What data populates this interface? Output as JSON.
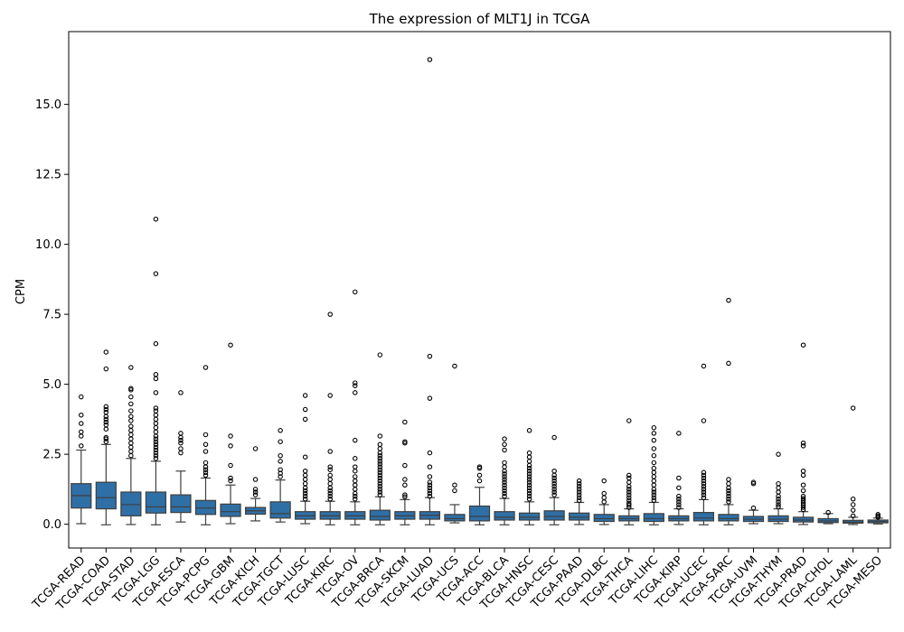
{
  "chart_data": {
    "type": "boxplot",
    "title": "The expression of MLT1J in TCGA",
    "xlabel": "",
    "ylabel": "CPM",
    "ylim": [
      -0.85,
      17.6
    ],
    "yticks": [
      0.0,
      2.5,
      5.0,
      7.5,
      10.0,
      12.5,
      15.0
    ],
    "ytick_labels": [
      "0.0",
      "2.5",
      "5.0",
      "7.5",
      "10.0",
      "12.5",
      "15.0"
    ],
    "grid": false,
    "box_color": "#2e6fa6",
    "categories": [
      "TCGA-READ",
      "TCGA-COAD",
      "TCGA-STAD",
      "TCGA-LGG",
      "TCGA-ESCA",
      "TCGA-PCPG",
      "TCGA-GBM",
      "TCGA-KICH",
      "TCGA-TGCT",
      "TCGA-LUSC",
      "TCGA-KIRC",
      "TCGA-OV",
      "TCGA-BRCA",
      "TCGA-SKCM",
      "TCGA-LUAD",
      "TCGA-UCS",
      "TCGA-ACC",
      "TCGA-BLCA",
      "TCGA-HNSC",
      "TCGA-CESC",
      "TCGA-PAAD",
      "TCGA-DLBC",
      "TCGA-THCA",
      "TCGA-LIHC",
      "TCGA-KIRP",
      "TCGA-UCEC",
      "TCGA-SARC",
      "TCGA-UVM",
      "TCGA-THYM",
      "TCGA-PRAD",
      "TCGA-CHOL",
      "TCGA-LAML",
      "TCGA-MESO"
    ],
    "boxes": [
      {
        "whislo": 0.02,
        "q1": 0.58,
        "med": 1.02,
        "q3": 1.45,
        "whishi": 2.65,
        "fliers": [
          2.8,
          3.15,
          3.3,
          3.6,
          3.9,
          4.55
        ]
      },
      {
        "whislo": -0.02,
        "q1": 0.55,
        "med": 0.95,
        "q3": 1.5,
        "whishi": 2.85,
        "fliers": [
          2.95,
          3.05,
          3.1,
          3.4,
          3.55,
          3.65,
          3.75,
          3.85,
          4.0,
          4.1,
          4.2,
          5.55,
          6.15
        ]
      },
      {
        "whislo": -0.01,
        "q1": 0.3,
        "med": 0.7,
        "q3": 1.15,
        "whishi": 2.35,
        "fliers": [
          2.45,
          2.6,
          2.75,
          2.9,
          3.05,
          3.2,
          3.35,
          3.5,
          3.7,
          3.85,
          4.05,
          4.3,
          4.55,
          4.8,
          4.85,
          5.6
        ]
      },
      {
        "whislo": -0.02,
        "q1": 0.4,
        "med": 0.62,
        "q3": 1.15,
        "whishi": 2.25,
        "fliers": [
          2.35,
          2.45,
          2.55,
          2.65,
          2.75,
          2.85,
          2.95,
          3.05,
          3.15,
          3.3,
          3.45,
          3.6,
          3.75,
          3.9,
          4.05,
          4.15,
          4.7,
          5.2,
          5.35,
          6.45,
          8.95,
          10.9
        ]
      },
      {
        "whislo": 0.08,
        "q1": 0.42,
        "med": 0.62,
        "q3": 1.05,
        "whishi": 1.9,
        "fliers": [
          2.55,
          2.7,
          2.9,
          3.0,
          3.1,
          3.25,
          4.7
        ]
      },
      {
        "whislo": -0.02,
        "q1": 0.35,
        "med": 0.58,
        "q3": 0.85,
        "whishi": 1.65,
        "fliers": [
          1.75,
          1.85,
          1.95,
          2.05,
          2.2,
          2.6,
          2.85,
          3.2,
          5.6
        ]
      },
      {
        "whislo": 0.02,
        "q1": 0.28,
        "med": 0.45,
        "q3": 0.72,
        "whishi": 1.4,
        "fliers": [
          1.55,
          1.65,
          2.1,
          2.8,
          3.15,
          6.4
        ]
      },
      {
        "whislo": 0.12,
        "q1": 0.36,
        "med": 0.48,
        "q3": 0.6,
        "whishi": 0.92,
        "fliers": [
          1.05,
          1.15,
          1.25,
          1.6,
          2.7
        ]
      },
      {
        "whislo": 0.08,
        "q1": 0.22,
        "med": 0.38,
        "q3": 0.8,
        "whishi": 1.58,
        "fliers": [
          1.7,
          1.82,
          1.95,
          2.25,
          2.45,
          2.95,
          3.35
        ]
      },
      {
        "whislo": 0.02,
        "q1": 0.18,
        "med": 0.3,
        "q3": 0.45,
        "whishi": 0.82,
        "fliers": [
          0.9,
          1.0,
          1.1,
          1.2,
          1.3,
          1.45,
          1.6,
          1.75,
          1.9,
          2.4,
          3.75,
          4.1,
          4.6
        ]
      },
      {
        "whislo": -0.02,
        "q1": 0.18,
        "med": 0.3,
        "q3": 0.45,
        "whishi": 0.82,
        "fliers": [
          0.9,
          1.0,
          1.1,
          1.2,
          1.3,
          1.45,
          1.6,
          1.75,
          1.95,
          2.05,
          2.6,
          4.6,
          7.5
        ]
      },
      {
        "whislo": -0.02,
        "q1": 0.18,
        "med": 0.3,
        "q3": 0.45,
        "whishi": 0.8,
        "fliers": [
          0.9,
          1.0,
          1.1,
          1.25,
          1.4,
          1.55,
          1.7,
          1.9,
          2.05,
          2.35,
          3.0,
          4.7,
          4.95,
          5.05,
          8.3
        ]
      },
      {
        "whislo": -0.02,
        "q1": 0.15,
        "med": 0.28,
        "q3": 0.5,
        "whishi": 0.98,
        "fliers": [
          1.05,
          1.15,
          1.25,
          1.35,
          1.45,
          1.55,
          1.65,
          1.75,
          1.85,
          1.95,
          2.05,
          2.15,
          2.25,
          2.35,
          2.45,
          2.55,
          2.7,
          2.85,
          3.15,
          6.05
        ]
      },
      {
        "whislo": -0.02,
        "q1": 0.18,
        "med": 0.3,
        "q3": 0.45,
        "whishi": 0.88,
        "fliers": [
          0.98,
          1.05,
          1.4,
          1.6,
          2.1,
          2.9,
          2.95,
          3.65
        ]
      },
      {
        "whislo": -0.02,
        "q1": 0.18,
        "med": 0.32,
        "q3": 0.45,
        "whishi": 0.95,
        "fliers": [
          1.0,
          1.1,
          1.2,
          1.3,
          1.4,
          1.5,
          1.7,
          2.05,
          2.55,
          4.5,
          6.0,
          16.6
        ]
      },
      {
        "whislo": 0.05,
        "q1": 0.12,
        "med": 0.2,
        "q3": 0.35,
        "whishi": 0.7,
        "fliers": [
          1.2,
          1.4,
          5.65
        ]
      },
      {
        "whislo": -0.02,
        "q1": 0.12,
        "med": 0.28,
        "q3": 0.65,
        "whishi": 1.32,
        "fliers": [
          1.55,
          1.75,
          2.0,
          2.05
        ]
      },
      {
        "whislo": -0.02,
        "q1": 0.15,
        "med": 0.25,
        "q3": 0.45,
        "whishi": 0.92,
        "fliers": [
          1.0,
          1.1,
          1.2,
          1.3,
          1.4,
          1.5,
          1.6,
          1.7,
          1.8,
          1.9,
          2.05,
          2.2,
          2.65,
          2.85,
          3.05
        ]
      },
      {
        "whislo": -0.02,
        "q1": 0.15,
        "med": 0.25,
        "q3": 0.4,
        "whishi": 0.8,
        "fliers": [
          0.9,
          1.0,
          1.1,
          1.2,
          1.3,
          1.4,
          1.5,
          1.6,
          1.7,
          1.8,
          1.9,
          2.0,
          2.1,
          2.25,
          2.4,
          2.55,
          3.35
        ]
      },
      {
        "whislo": -0.02,
        "q1": 0.15,
        "med": 0.28,
        "q3": 0.48,
        "whishi": 0.95,
        "fliers": [
          1.05,
          1.15,
          1.25,
          1.35,
          1.45,
          1.55,
          1.65,
          1.75,
          1.9,
          3.1
        ]
      },
      {
        "whislo": -0.01,
        "q1": 0.15,
        "med": 0.25,
        "q3": 0.4,
        "whishi": 0.78,
        "fliers": [
          0.85,
          0.95,
          1.05,
          1.15,
          1.25,
          1.35,
          1.45,
          1.55
        ]
      },
      {
        "whislo": -0.01,
        "q1": 0.1,
        "med": 0.2,
        "q3": 0.35,
        "whishi": 0.7,
        "fliers": [
          0.8,
          0.95,
          1.1,
          1.55
        ]
      },
      {
        "whislo": -0.02,
        "q1": 0.12,
        "med": 0.2,
        "q3": 0.3,
        "whishi": 0.55,
        "fliers": [
          0.6,
          0.68,
          0.75,
          0.85,
          0.95,
          1.05,
          1.15,
          1.25,
          1.35,
          1.5,
          1.65,
          1.75,
          3.7
        ]
      },
      {
        "whislo": -0.02,
        "q1": 0.1,
        "med": 0.2,
        "q3": 0.38,
        "whishi": 0.78,
        "fliers": [
          0.85,
          0.95,
          1.05,
          1.15,
          1.25,
          1.4,
          1.55,
          1.7,
          1.85,
          2.0,
          2.2,
          2.45,
          2.7,
          3.0,
          3.25,
          3.45
        ]
      },
      {
        "whislo": -0.01,
        "q1": 0.12,
        "med": 0.2,
        "q3": 0.3,
        "whishi": 0.55,
        "fliers": [
          0.6,
          0.7,
          0.8,
          0.9,
          1.0,
          1.3,
          1.65,
          3.25
        ]
      },
      {
        "whislo": -0.02,
        "q1": 0.12,
        "med": 0.22,
        "q3": 0.42,
        "whishi": 0.88,
        "fliers": [
          0.95,
          1.05,
          1.15,
          1.25,
          1.35,
          1.45,
          1.55,
          1.65,
          1.75,
          1.85,
          3.7,
          5.65
        ]
      },
      {
        "whislo": -0.02,
        "q1": 0.12,
        "med": 0.2,
        "q3": 0.35,
        "whishi": 0.7,
        "fliers": [
          0.8,
          0.9,
          1.0,
          1.1,
          1.2,
          1.3,
          1.45,
          1.6,
          5.75,
          8.0
        ]
      },
      {
        "whislo": 0.02,
        "q1": 0.1,
        "med": 0.18,
        "q3": 0.28,
        "whishi": 0.5,
        "fliers": [
          0.58,
          1.45,
          1.5
        ]
      },
      {
        "whislo": 0.02,
        "q1": 0.1,
        "med": 0.18,
        "q3": 0.3,
        "whishi": 0.55,
        "fliers": [
          0.62,
          0.7,
          0.8,
          0.9,
          1.0,
          1.15,
          1.3,
          1.45,
          2.5
        ]
      },
      {
        "whislo": -0.01,
        "q1": 0.08,
        "med": 0.15,
        "q3": 0.25,
        "whishi": 0.45,
        "fliers": [
          0.52,
          0.6,
          0.68,
          0.76,
          0.84,
          0.92,
          1.0,
          1.2,
          1.4,
          1.75,
          1.9,
          2.8,
          2.9,
          6.4
        ]
      },
      {
        "whislo": 0.02,
        "q1": 0.06,
        "med": 0.12,
        "q3": 0.2,
        "whishi": 0.38,
        "fliers": [
          0.42
        ]
      },
      {
        "whislo": -0.01,
        "q1": 0.04,
        "med": 0.08,
        "q3": 0.14,
        "whishi": 0.25,
        "fliers": [
          0.3,
          0.5,
          0.7,
          0.9,
          4.15
        ]
      },
      {
        "whislo": 0.01,
        "q1": 0.05,
        "med": 0.1,
        "q3": 0.15,
        "whishi": 0.22,
        "fliers": [
          0.25,
          0.3,
          0.35
        ]
      }
    ]
  }
}
